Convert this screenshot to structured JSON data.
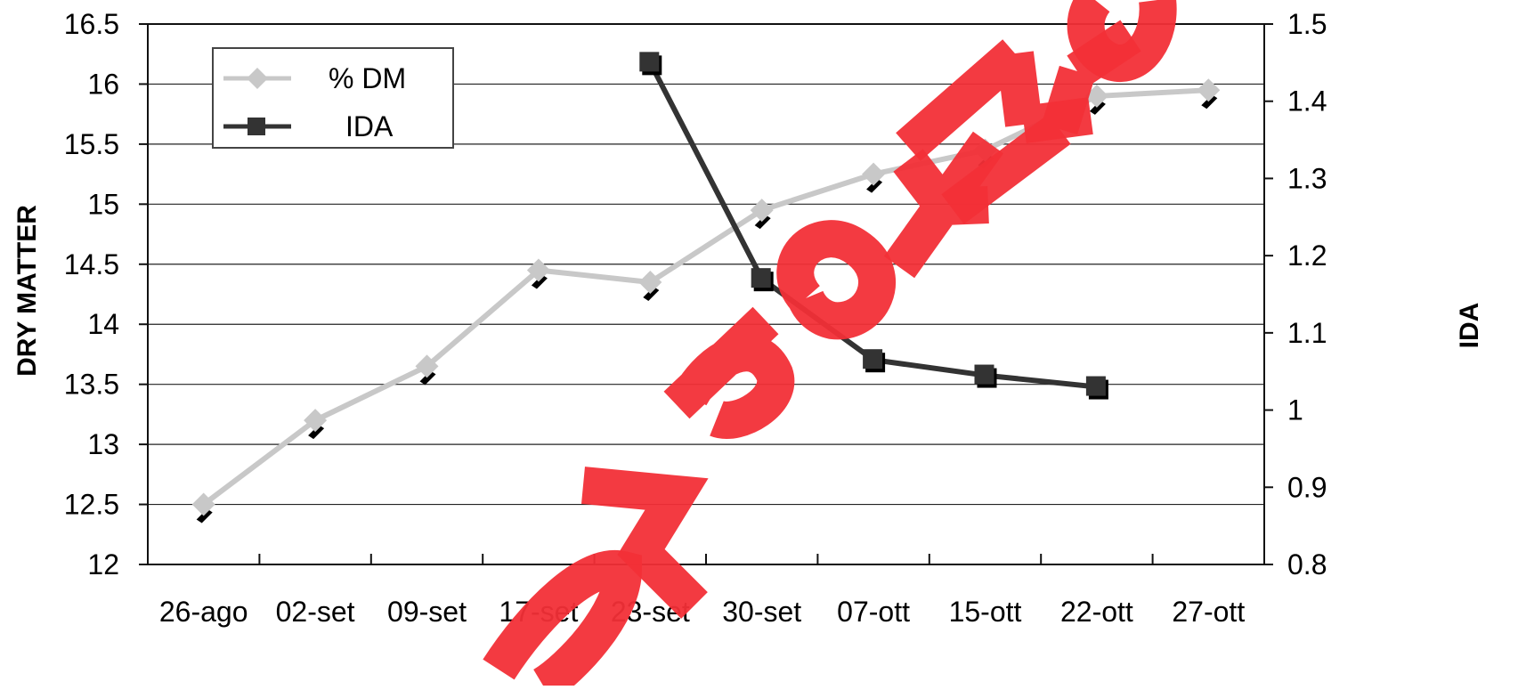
{
  "chart_data": {
    "type": "line",
    "categories": [
      "26-ago",
      "02-set",
      "09-set",
      "17-set",
      "23-set",
      "30-set",
      "07-ott",
      "15-ott",
      "22-ott",
      "27-ott"
    ],
    "series": [
      {
        "name": "% DM",
        "axis": "left",
        "color": "#c8c8c8",
        "marker": "diamond",
        "values": [
          12.5,
          13.2,
          13.65,
          14.45,
          14.35,
          14.95,
          15.25,
          15.45,
          15.9,
          15.95
        ]
      },
      {
        "name": "IDA",
        "axis": "right",
        "color": "#333333",
        "marker": "square",
        "values": [
          null,
          null,
          null,
          null,
          1.45,
          1.17,
          1.065,
          1.045,
          1.03,
          null
        ]
      }
    ],
    "ylabel": "DRY MATTER",
    "y2label": "IDA",
    "ylim": [
      12,
      16.5
    ],
    "yticks": [
      "12",
      "12.5",
      "13",
      "13.5",
      "14",
      "14.5",
      "15",
      "15.5",
      "16",
      "16.5"
    ],
    "y2lim": [
      0.8,
      1.5
    ],
    "y2ticks": [
      "0.8",
      "0.9",
      "1",
      "1.1",
      "1.2",
      "1.3",
      "1.4",
      "1.5"
    ],
    "grid": true,
    "legend_position": "top-left",
    "watermark": {
      "text": "ΡΟΣ ΡΟΥΣΣΟ",
      "color": "#f22f37"
    }
  }
}
